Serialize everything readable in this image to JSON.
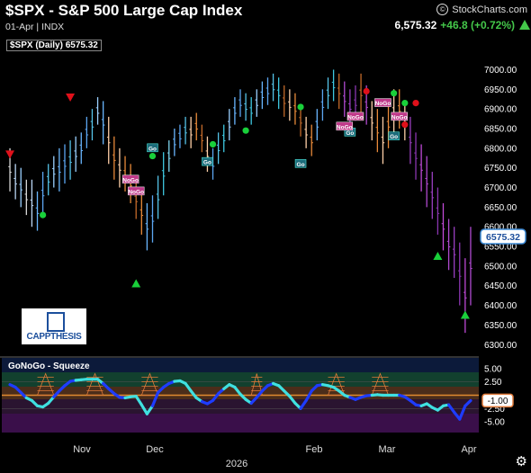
{
  "header": {
    "title": "$SPX - S&P 500 Large Cap Index",
    "subtitle": "01-Apr | INDX",
    "brand": "StockCharts.com",
    "last_price": "6,575.32",
    "change": "+46.8 (+0.72%)",
    "legend": "$SPX (Daily) 6575.32",
    "price_badge": "6575.32"
  },
  "indicator": {
    "label": "GoNoGo - Squeeze",
    "badge": "-1.00",
    "axis_labels": [
      "5.00",
      "2.50",
      "-2.50",
      "-5.00"
    ]
  },
  "logo_text": "CAPPTHESIS",
  "colors": {
    "background": "#000000",
    "up_badge": "#3d8bd6",
    "go_cyan": "#3fe0e0",
    "go_blue": "#1e3cff",
    "nogo_orange": "#e07a3a",
    "nogo_purple": "#b04ad0",
    "green_dot": "#19d03a",
    "red_marker": "#e0101a"
  },
  "chart_data": {
    "type": "bar",
    "title": "$SPX - S&P 500 Large Cap Index",
    "ylim": [
      6280,
      7040
    ],
    "y_ticks": [
      6300,
      6350,
      6400,
      6450,
      6500,
      6550,
      6600,
      6650,
      6700,
      6750,
      6800,
      6850,
      6900,
      6950,
      7000
    ],
    "x_tick_labels": [
      "Nov",
      "Dec",
      "2026",
      "Feb",
      "Mar",
      "Apr"
    ],
    "last_value": 6575.32,
    "bars_hl": [
      [
        6690,
        6800
      ],
      [
        6670,
        6760
      ],
      [
        6650,
        6750
      ],
      [
        6630,
        6720
      ],
      [
        6600,
        6720
      ],
      [
        6590,
        6690
      ],
      [
        6630,
        6740
      ],
      [
        6680,
        6760
      ],
      [
        6700,
        6780
      ],
      [
        6690,
        6800
      ],
      [
        6710,
        6810
      ],
      [
        6720,
        6820
      ],
      [
        6740,
        6830
      ],
      [
        6760,
        6840
      ],
      [
        6800,
        6880
      ],
      [
        6820,
        6900
      ],
      [
        6860,
        6930
      ],
      [
        6810,
        6920
      ],
      [
        6760,
        6880
      ],
      [
        6720,
        6830
      ],
      [
        6700,
        6800
      ],
      [
        6690,
        6780
      ],
      [
        6660,
        6760
      ],
      [
        6620,
        6720
      ],
      [
        6580,
        6690
      ],
      [
        6540,
        6660
      ],
      [
        6560,
        6680
      ],
      [
        6620,
        6730
      ],
      [
        6680,
        6790
      ],
      [
        6740,
        6820
      ],
      [
        6780,
        6850
      ],
      [
        6800,
        6860
      ],
      [
        6810,
        6880
      ],
      [
        6800,
        6880
      ],
      [
        6820,
        6890
      ],
      [
        6790,
        6860
      ],
      [
        6740,
        6830
      ],
      [
        6720,
        6800
      ],
      [
        6760,
        6840
      ],
      [
        6790,
        6860
      ],
      [
        6820,
        6900
      ],
      [
        6860,
        6930
      ],
      [
        6880,
        6950
      ],
      [
        6870,
        6940
      ],
      [
        6860,
        6930
      ],
      [
        6880,
        6950
      ],
      [
        6900,
        6970
      ],
      [
        6910,
        6980
      ],
      [
        6920,
        6990
      ],
      [
        6900,
        6980
      ],
      [
        6880,
        6960
      ],
      [
        6870,
        6950
      ],
      [
        6860,
        6940
      ],
      [
        6830,
        6910
      ],
      [
        6800,
        6880
      ],
      [
        6780,
        6860
      ],
      [
        6820,
        6900
      ],
      [
        6870,
        6950
      ],
      [
        6900,
        6980
      ],
      [
        6920,
        7000
      ],
      [
        6900,
        6990
      ],
      [
        6880,
        6970
      ],
      [
        6860,
        6950
      ],
      [
        6870,
        6960
      ],
      [
        6890,
        6990
      ],
      [
        6860,
        6960
      ],
      [
        6820,
        6920
      ],
      [
        6790,
        6900
      ],
      [
        6760,
        6880
      ],
      [
        6800,
        6920
      ],
      [
        6840,
        6950
      ],
      [
        6850,
        6950
      ],
      [
        6820,
        6920
      ],
      [
        6760,
        6880
      ],
      [
        6720,
        6840
      ],
      [
        6690,
        6810
      ],
      [
        6650,
        6780
      ],
      [
        6620,
        6740
      ],
      [
        6580,
        6700
      ],
      [
        6540,
        6660
      ],
      [
        6490,
        6620
      ],
      [
        6470,
        6600
      ],
      [
        6400,
        6560
      ],
      [
        6330,
        6520
      ],
      [
        6400,
        6600
      ]
    ],
    "go_markers": [
      {
        "label": "Go",
        "bar": 26,
        "value": 6800
      },
      {
        "label": "Go",
        "bar": 36,
        "value": 6765
      },
      {
        "label": "Go",
        "bar": 53,
        "value": 6760
      },
      {
        "label": "Go",
        "bar": 62,
        "value": 6840
      },
      {
        "label": "Go",
        "bar": 70,
        "value": 6830
      }
    ],
    "nogo_markers": [
      {
        "label": "NoGo",
        "bar": 22,
        "value": 6720
      },
      {
        "label": "NoGo",
        "bar": 23,
        "value": 6690
      },
      {
        "label": "NoGo",
        "bar": 61,
        "value": 6855
      },
      {
        "label": "NoGo",
        "bar": 63,
        "value": 6880
      },
      {
        "label": "NoGo",
        "bar": 68,
        "value": 6915
      },
      {
        "label": "NoGo",
        "bar": 71,
        "value": 6880
      }
    ],
    "green_dots": [
      {
        "bar": 6,
        "value": 6630
      },
      {
        "bar": 26,
        "value": 6780
      },
      {
        "bar": 37,
        "value": 6810
      },
      {
        "bar": 43,
        "value": 6845
      },
      {
        "bar": 53,
        "value": 6905
      },
      {
        "bar": 70,
        "value": 6940
      },
      {
        "bar": 72,
        "value": 6915
      }
    ],
    "red_dots": [
      {
        "bar": 65,
        "value": 6945
      },
      {
        "bar": 72,
        "value": 6860
      },
      {
        "bar": 74,
        "value": 6915
      }
    ],
    "red_triangles": [
      {
        "bar": 0,
        "value": 6785
      },
      {
        "bar": 11,
        "value": 6930
      }
    ],
    "green_triangles": [
      {
        "bar": 23,
        "value": 6455
      },
      {
        "bar": 78,
        "value": 6525
      },
      {
        "bar": 83,
        "value": 6375
      }
    ],
    "oscillator": {
      "ylim": [
        -7,
        7
      ],
      "values": [
        2.0,
        1.5,
        0.5,
        -0.5,
        -1.0,
        -2.0,
        -2.2,
        -1.5,
        -0.3,
        0.8,
        1.8,
        2.6,
        2.8,
        2.9,
        3.0,
        3.0,
        3.0,
        2.2,
        1.2,
        0.3,
        -0.4,
        -0.5,
        -0.3,
        -0.2,
        -1.8,
        -3.5,
        -2.0,
        0.5,
        1.5,
        2.2,
        2.6,
        2.7,
        2.2,
        0.8,
        -0.5,
        -1.2,
        -1.6,
        -1.0,
        0.3,
        1.2,
        2.0,
        1.5,
        0.2,
        -0.8,
        -1.5,
        -0.4,
        0.8,
        1.8,
        2.2,
        1.8,
        0.8,
        -0.2,
        -1.5,
        -2.5,
        -1.0,
        0.8,
        1.8,
        2.0,
        1.8,
        1.5,
        0.8,
        0.0,
        -0.4,
        -0.8,
        -0.4,
        -0.1,
        0.0,
        0.1,
        0.0,
        0.0,
        0.0,
        0.0,
        -0.3,
        -1.0,
        -1.8,
        -2.0,
        -1.6,
        -2.3,
        -2.8,
        -2.0,
        -1.8,
        -3.2,
        -4.5,
        -2.0,
        -1.0
      ]
    }
  }
}
